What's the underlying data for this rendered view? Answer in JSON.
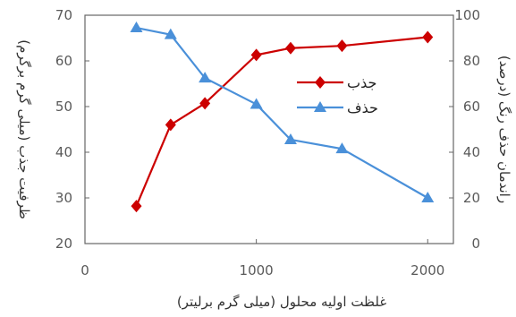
{
  "chart_data": {
    "type": "line",
    "xlabel": "غلظت اولیه محلول (میلی گرم برلیتر)",
    "ylabel_left": "ظرفیت جذب (میلی گرم برگرم)",
    "ylabel_right": "راندمان حذف رنگ (درصد)",
    "xlim": [
      0,
      2150
    ],
    "x_ticks": [
      0,
      1000,
      2000
    ],
    "x_tick_labels": [
      "0",
      "1000",
      "2000"
    ],
    "ylim_left": [
      20,
      70
    ],
    "y_ticks_left": [
      20,
      30,
      40,
      50,
      60,
      70
    ],
    "ylim_right": [
      0,
      100
    ],
    "y_ticks_right": [
      0,
      20,
      40,
      60,
      80,
      100
    ],
    "grid": false,
    "legend": "center-right",
    "series": [
      {
        "name": "جذب",
        "axis": "left",
        "color": "#cc0000",
        "marker": "diamond",
        "x": [
          300,
          500,
          700,
          1000,
          1200,
          1500,
          2000
        ],
        "y": [
          28.2,
          46,
          50.7,
          61.3,
          62.8,
          63.3,
          65.2
        ]
      },
      {
        "name": "حذف",
        "axis": "right",
        "color": "#4a90d9",
        "marker": "triangle",
        "x": [
          300,
          500,
          700,
          1000,
          1200,
          1500,
          2000
        ],
        "y": [
          94.5,
          91.5,
          72.5,
          61,
          45.5,
          41.5,
          20
        ]
      }
    ]
  }
}
